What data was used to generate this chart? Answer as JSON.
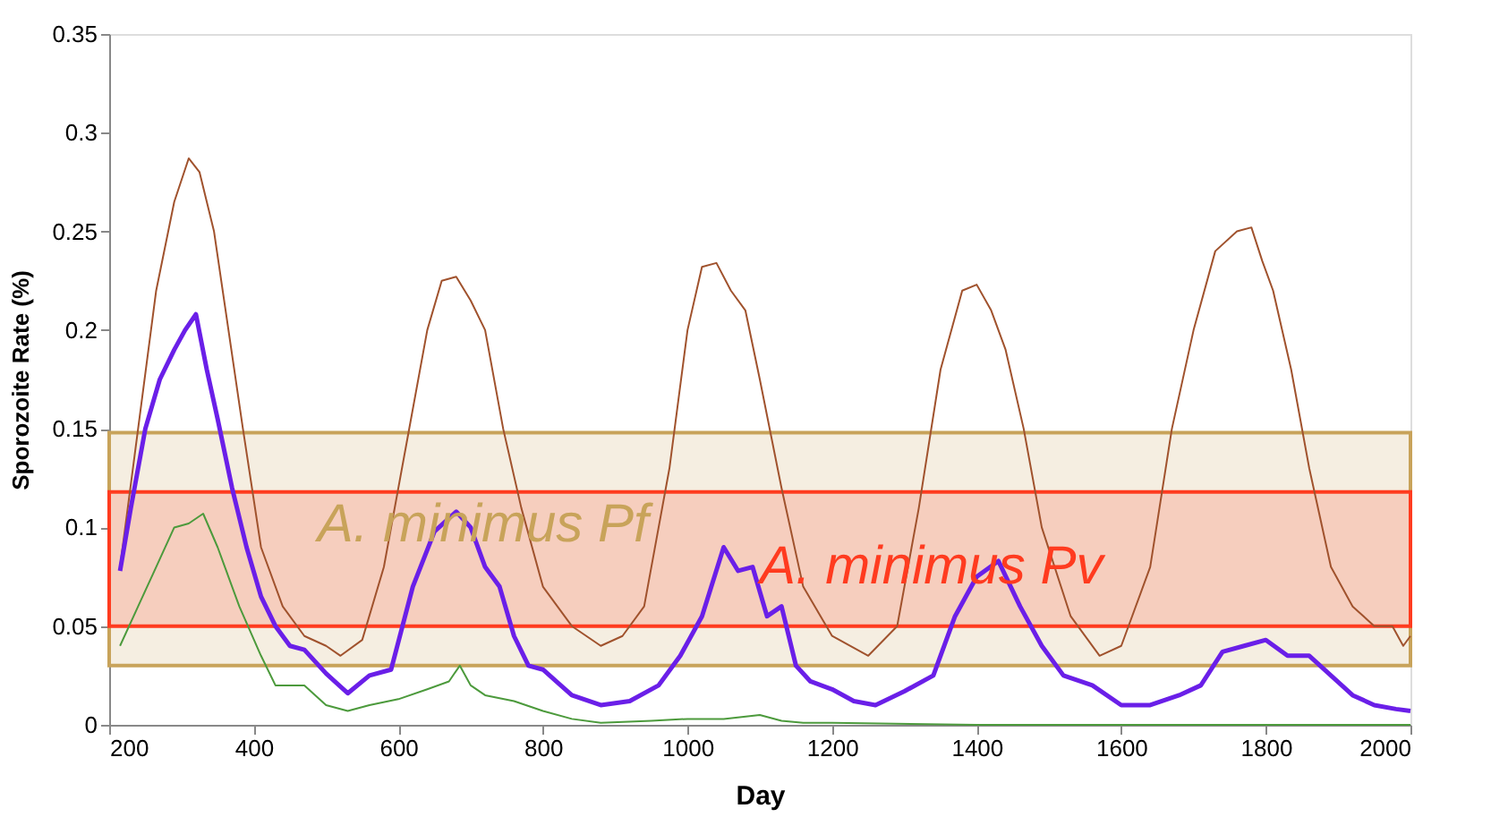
{
  "chart_data": {
    "type": "line",
    "xlabel": "Day",
    "ylabel": "Sporozoite Rate (%)",
    "xlim": [
      200,
      2000
    ],
    "xticks": [
      200,
      400,
      600,
      800,
      1000,
      1200,
      1400,
      1600,
      1800,
      2000
    ],
    "ylim": [
      0,
      0.35
    ],
    "yticks": [
      0,
      0.05,
      0.1,
      0.15,
      0.2,
      0.25,
      0.3,
      0.35
    ],
    "grid": false,
    "marker": "none",
    "line_style": "solid",
    "series": [
      {
        "color": "#a0522d",
        "x": [
          215,
          240,
          265,
          290,
          310,
          325,
          345,
          365,
          385,
          410,
          440,
          470,
          500,
          520,
          550,
          580,
          610,
          640,
          660,
          680,
          700,
          720,
          745,
          770,
          800,
          840,
          880,
          910,
          940,
          975,
          1000,
          1020,
          1040,
          1060,
          1080,
          1100,
          1130,
          1160,
          1200,
          1250,
          1290,
          1320,
          1350,
          1380,
          1400,
          1420,
          1440,
          1465,
          1490,
          1530,
          1570,
          1600,
          1640,
          1670,
          1700,
          1730,
          1760,
          1780,
          1795,
          1810,
          1835,
          1860,
          1890,
          1920,
          1950,
          1975,
          1990,
          2000
        ],
        "values": [
          0.08,
          0.15,
          0.22,
          0.265,
          0.287,
          0.28,
          0.25,
          0.2,
          0.15,
          0.09,
          0.06,
          0.045,
          0.04,
          0.035,
          0.043,
          0.08,
          0.14,
          0.2,
          0.225,
          0.227,
          0.215,
          0.2,
          0.15,
          0.11,
          0.07,
          0.05,
          0.04,
          0.045,
          0.06,
          0.13,
          0.2,
          0.232,
          0.234,
          0.22,
          0.21,
          0.175,
          0.12,
          0.07,
          0.045,
          0.035,
          0.05,
          0.11,
          0.18,
          0.22,
          0.223,
          0.21,
          0.19,
          0.15,
          0.1,
          0.055,
          0.035,
          0.04,
          0.08,
          0.15,
          0.2,
          0.24,
          0.25,
          0.252,
          0.235,
          0.22,
          0.18,
          0.13,
          0.08,
          0.06,
          0.05,
          0.05,
          0.04,
          0.045
        ]
      },
      {
        "color": "#6a1fe8",
        "x": [
          215,
          230,
          250,
          270,
          290,
          305,
          320,
          335,
          350,
          370,
          390,
          410,
          430,
          450,
          470,
          500,
          530,
          560,
          590,
          620,
          650,
          680,
          700,
          720,
          740,
          760,
          780,
          800,
          840,
          880,
          920,
          960,
          990,
          1020,
          1050,
          1070,
          1090,
          1110,
          1130,
          1150,
          1170,
          1200,
          1230,
          1260,
          1300,
          1340,
          1370,
          1400,
          1430,
          1460,
          1490,
          1520,
          1560,
          1600,
          1640,
          1680,
          1710,
          1740,
          1770,
          1800,
          1830,
          1860,
          1890,
          1920,
          1950,
          1980,
          2000
        ],
        "values": [
          0.078,
          0.11,
          0.15,
          0.175,
          0.19,
          0.2,
          0.208,
          0.18,
          0.155,
          0.12,
          0.09,
          0.065,
          0.05,
          0.04,
          0.038,
          0.026,
          0.016,
          0.025,
          0.028,
          0.07,
          0.098,
          0.108,
          0.1,
          0.08,
          0.07,
          0.045,
          0.03,
          0.028,
          0.015,
          0.01,
          0.012,
          0.02,
          0.035,
          0.055,
          0.09,
          0.078,
          0.08,
          0.055,
          0.06,
          0.03,
          0.022,
          0.018,
          0.012,
          0.01,
          0.017,
          0.025,
          0.055,
          0.075,
          0.083,
          0.06,
          0.04,
          0.025,
          0.02,
          0.01,
          0.01,
          0.015,
          0.02,
          0.037,
          0.04,
          0.043,
          0.035,
          0.035,
          0.025,
          0.015,
          0.01,
          0.008,
          0.007
        ]
      },
      {
        "color": "#4c9a3c",
        "x": [
          215,
          240,
          265,
          290,
          310,
          330,
          350,
          380,
          410,
          430,
          470,
          500,
          530,
          560,
          600,
          640,
          670,
          685,
          700,
          720,
          760,
          800,
          840,
          880,
          950,
          1000,
          1050,
          1100,
          1130,
          1160,
          1200,
          1400,
          1600,
          1800,
          2000
        ],
        "values": [
          0.04,
          0.06,
          0.08,
          0.1,
          0.102,
          0.107,
          0.09,
          0.06,
          0.035,
          0.02,
          0.02,
          0.01,
          0.007,
          0.01,
          0.013,
          0.018,
          0.022,
          0.03,
          0.02,
          0.015,
          0.012,
          0.007,
          0.003,
          0.001,
          0.002,
          0.003,
          0.003,
          0.005,
          0.002,
          0.001,
          0.001,
          0.0,
          0.0,
          0.0,
          0.0
        ]
      }
    ],
    "bands": [
      {
        "axis": "y",
        "from": 0.03,
        "to": 0.148,
        "label": "A. minimus Pf",
        "color": "#c8a35a"
      },
      {
        "axis": "y",
        "from": 0.05,
        "to": 0.118,
        "label": "A. minimus Pv",
        "color": "#ff3b1f"
      }
    ]
  }
}
